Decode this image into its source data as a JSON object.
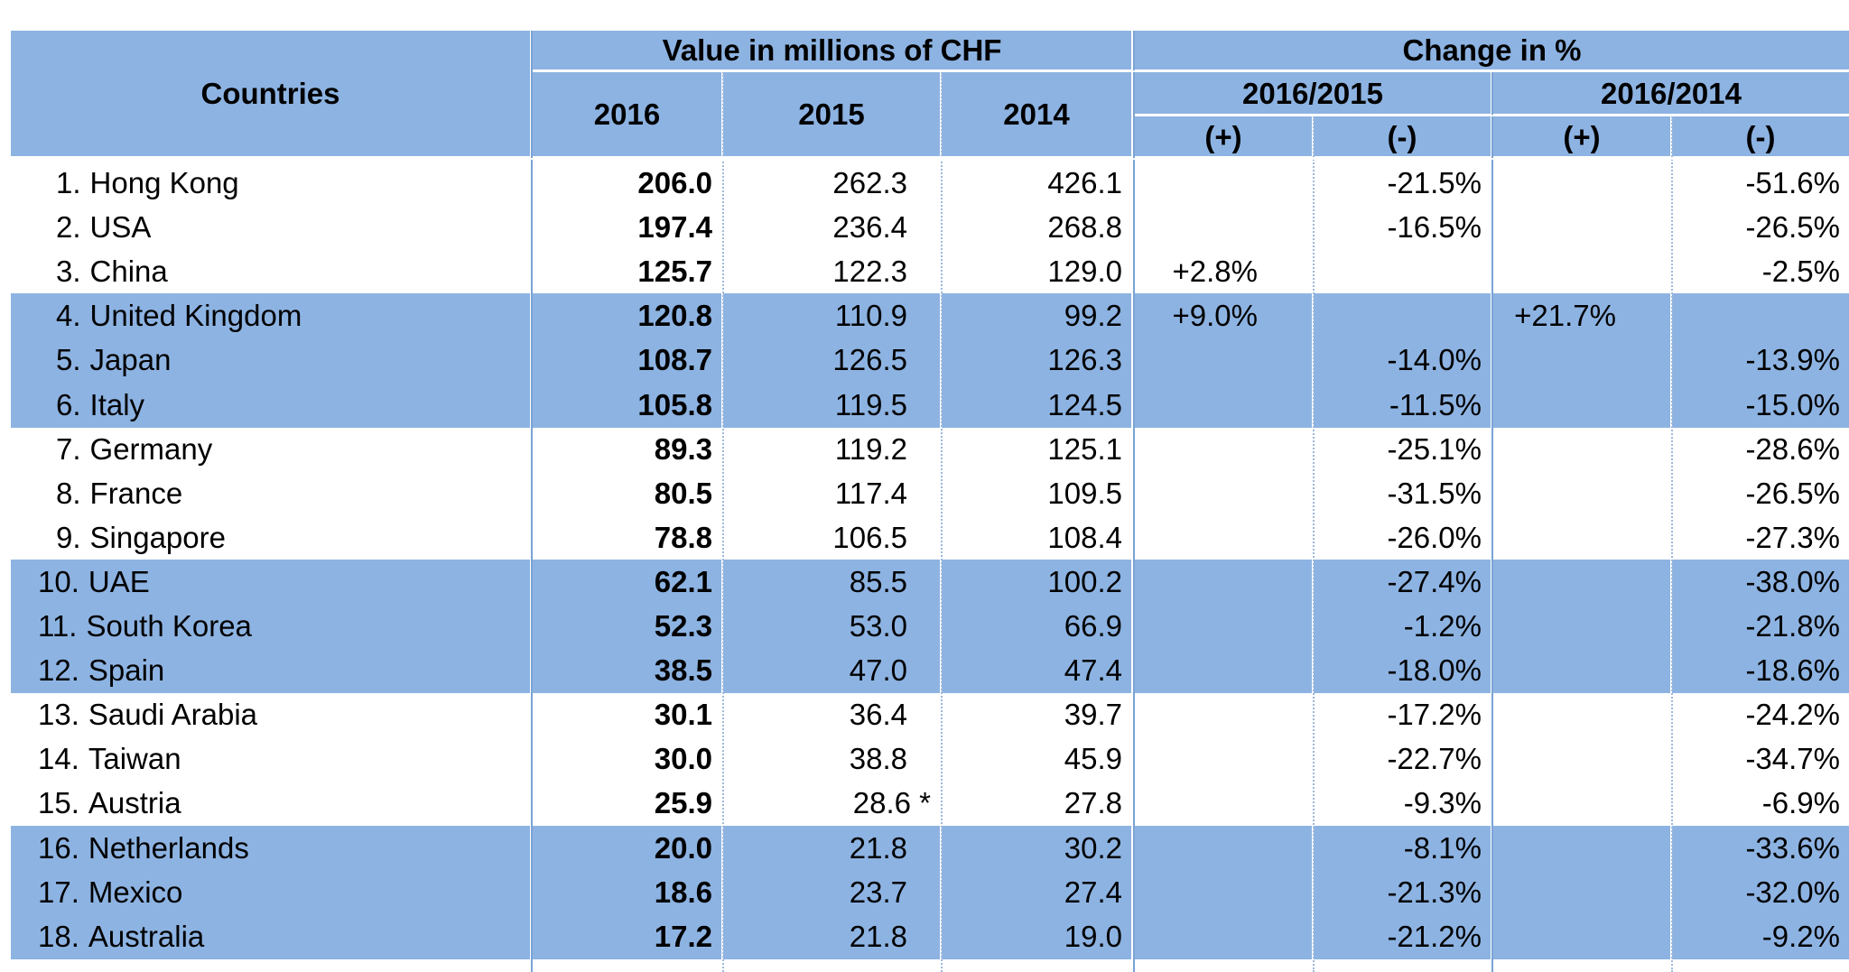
{
  "header": {
    "countries": "Countries",
    "value_group": "Value in millions of CHF",
    "change_group": "Change in %",
    "years": [
      "2016",
      "2015",
      "2014"
    ],
    "periods": [
      "2016/2015",
      "2016/2014"
    ],
    "plus": "(+)",
    "minus": "(-)"
  },
  "rows": [
    {
      "rank": "1.",
      "country": "Hong Kong",
      "v2016": "206.0",
      "v2015": "262.3",
      "v2014": "426.1",
      "c1p": "",
      "c1m": "-21.5%",
      "c2p": "",
      "c2m": "-51.6%"
    },
    {
      "rank": "2.",
      "country": "USA",
      "v2016": "197.4",
      "v2015": "236.4",
      "v2014": "268.8",
      "c1p": "",
      "c1m": "-16.5%",
      "c2p": "",
      "c2m": "-26.5%"
    },
    {
      "rank": "3.",
      "country": "China",
      "v2016": "125.7",
      "v2015": "122.3",
      "v2014": "129.0",
      "c1p": "+2.8%",
      "c1m": "",
      "c2p": "",
      "c2m": "-2.5%"
    },
    {
      "rank": "4.",
      "country": "United Kingdom",
      "v2016": "120.8",
      "v2015": "110.9",
      "v2014": "99.2",
      "c1p": "+9.0%",
      "c1m": "",
      "c2p": "+21.7%",
      "c2m": ""
    },
    {
      "rank": "5.",
      "country": "Japan",
      "v2016": "108.7",
      "v2015": "126.5",
      "v2014": "126.3",
      "c1p": "",
      "c1m": "-14.0%",
      "c2p": "",
      "c2m": "-13.9%"
    },
    {
      "rank": "6.",
      "country": "Italy",
      "v2016": "105.8",
      "v2015": "119.5",
      "v2014": "124.5",
      "c1p": "",
      "c1m": "-11.5%",
      "c2p": "",
      "c2m": "-15.0%"
    },
    {
      "rank": "7.",
      "country": "Germany",
      "v2016": "89.3",
      "v2015": "119.2",
      "v2014": "125.1",
      "c1p": "",
      "c1m": "-25.1%",
      "c2p": "",
      "c2m": "-28.6%"
    },
    {
      "rank": "8.",
      "country": "France",
      "v2016": "80.5",
      "v2015": "117.4",
      "v2014": "109.5",
      "c1p": "",
      "c1m": "-31.5%",
      "c2p": "",
      "c2m": "-26.5%"
    },
    {
      "rank": "9.",
      "country": "Singapore",
      "v2016": "78.8",
      "v2015": "106.5",
      "v2014": "108.4",
      "c1p": "",
      "c1m": "-26.0%",
      "c2p": "",
      "c2m": "-27.3%"
    },
    {
      "rank": "10.",
      "country": "UAE",
      "v2016": "62.1",
      "v2015": "85.5",
      "v2014": "100.2",
      "c1p": "",
      "c1m": "-27.4%",
      "c2p": "",
      "c2m": "-38.0%"
    },
    {
      "rank": "11.",
      "country": "South Korea",
      "v2016": "52.3",
      "v2015": "53.0",
      "v2014": "66.9",
      "c1p": "",
      "c1m": "-1.2%",
      "c2p": "",
      "c2m": "-21.8%"
    },
    {
      "rank": "12.",
      "country": "Spain",
      "v2016": "38.5",
      "v2015": "47.0",
      "v2014": "47.4",
      "c1p": "",
      "c1m": "-18.0%",
      "c2p": "",
      "c2m": "-18.6%"
    },
    {
      "rank": "13.",
      "country": "Saudi Arabia",
      "v2016": "30.1",
      "v2015": "36.4",
      "v2014": "39.7",
      "c1p": "",
      "c1m": "-17.2%",
      "c2p": "",
      "c2m": "-24.2%"
    },
    {
      "rank": "14.",
      "country": "Taiwan",
      "v2016": "30.0",
      "v2015": "38.8",
      "v2014": "45.9",
      "c1p": "",
      "c1m": "-22.7%",
      "c2p": "",
      "c2m": "-34.7%"
    },
    {
      "rank": "15.",
      "country": "Austria",
      "v2016": "25.9",
      "v2015": "28.6 *",
      "v2014": "27.8",
      "c1p": "",
      "c1m": "-9.3%",
      "c2p": "",
      "c2m": "-6.9%"
    },
    {
      "rank": "16.",
      "country": "Netherlands",
      "v2016": "20.0",
      "v2015": "21.8",
      "v2014": "30.2",
      "c1p": "",
      "c1m": "-8.1%",
      "c2p": "",
      "c2m": "-33.6%"
    },
    {
      "rank": "17.",
      "country": "Mexico",
      "v2016": "18.6",
      "v2015": "23.7",
      "v2014": "27.4",
      "c1p": "",
      "c1m": "-21.3%",
      "c2p": "",
      "c2m": "-32.0%"
    },
    {
      "rank": "18.",
      "country": "Australia",
      "v2016": "17.2",
      "v2015": "21.8",
      "v2014": "19.0",
      "c1p": "",
      "c1m": "-21.2%",
      "c2p": "",
      "c2m": "-9.2%"
    }
  ],
  "colors": {
    "header_bg": "#8db3e2",
    "band_bg": "#8db3e2",
    "text": "#000000"
  }
}
